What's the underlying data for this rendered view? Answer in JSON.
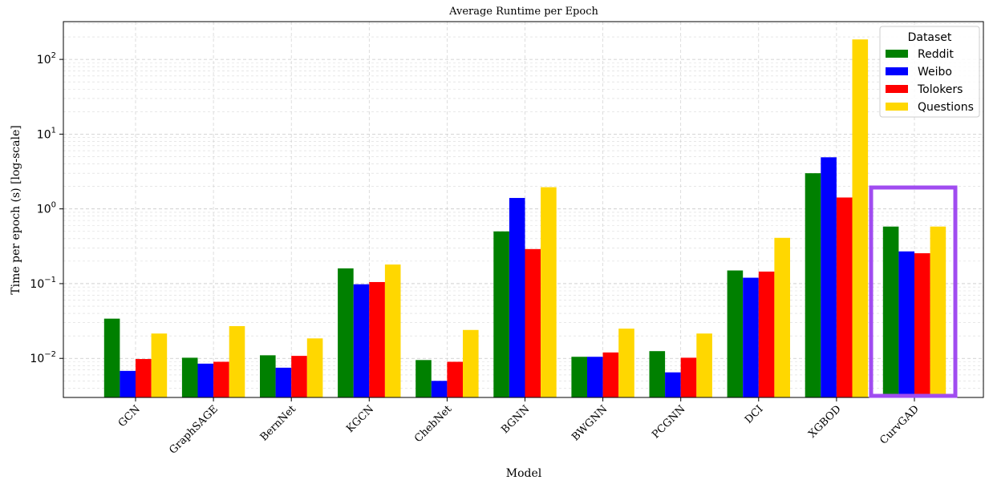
{
  "chart_data": {
    "type": "bar",
    "title": "Average Runtime per Epoch",
    "xlabel": "Model",
    "ylabel": "Time per epoch (s) [log-scale]",
    "yscale": "log",
    "ylim": [
      0.003,
      320
    ],
    "grid": true,
    "categories": [
      "GCN",
      "GraphSAGE",
      "BernNet",
      "KGCN",
      "ChebNet",
      "BGNN",
      "BWGNN",
      "PCGNN",
      "DCI",
      "XGBOD",
      "CurvGAD"
    ],
    "yticks": [
      {
        "value": 0.01,
        "base": "10",
        "exp": "−2"
      },
      {
        "value": 0.1,
        "base": "10",
        "exp": "−1"
      },
      {
        "value": 1,
        "base": "10",
        "exp": "0"
      },
      {
        "value": 10,
        "base": "10",
        "exp": "1"
      },
      {
        "value": 100,
        "base": "10",
        "exp": "2"
      }
    ],
    "legend": {
      "title": "Dataset",
      "placement": "top-right"
    },
    "highlight": {
      "category": "CurvGAD",
      "color": "#a04cf0"
    },
    "series": [
      {
        "name": "Reddit",
        "color": "#008000",
        "values": [
          0.034,
          0.0102,
          0.011,
          0.16,
          0.0095,
          0.5,
          0.0105,
          0.0125,
          0.15,
          3.0,
          0.58
        ]
      },
      {
        "name": "Weibo",
        "color": "#0000ff",
        "values": [
          0.0068,
          0.0085,
          0.0075,
          0.098,
          0.005,
          1.4,
          0.0105,
          0.0065,
          0.12,
          4.9,
          0.27
        ]
      },
      {
        "name": "Tolokers",
        "color": "#ff0000",
        "values": [
          0.0098,
          0.009,
          0.0108,
          0.105,
          0.009,
          0.29,
          0.012,
          0.0102,
          0.145,
          1.42,
          0.255
        ]
      },
      {
        "name": "Questions",
        "color": "#ffd700",
        "values": [
          0.0215,
          0.027,
          0.0185,
          0.18,
          0.024,
          1.95,
          0.025,
          0.0215,
          0.41,
          185,
          0.58
        ]
      }
    ]
  }
}
